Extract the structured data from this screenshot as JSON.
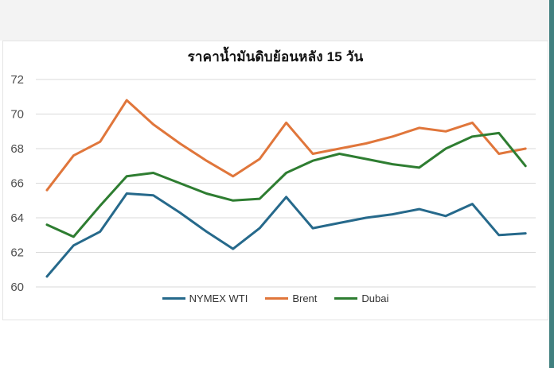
{
  "palette": {
    "top_strip": "#f3f3f3",
    "right_strip": "#41807f",
    "panel_border": "#e4e4e4",
    "gridline": "#dadada",
    "tick_label": "#4d4d4d"
  },
  "chart_data": {
    "type": "line",
    "title": "ราคาน้ำมันดิบย้อนหลัง 15 วัน",
    "xlabel": "",
    "ylabel": "",
    "x_tick_labels_visible": false,
    "grid": true,
    "legend_position": "bottom",
    "ylim": [
      60,
      72
    ],
    "y_ticks": [
      72,
      70,
      68,
      66,
      64,
      62,
      60
    ],
    "series": [
      {
        "name": "NYMEX WTI",
        "color": "#26698b",
        "values": [
          60.6,
          62.4,
          63.2,
          65.4,
          65.3,
          64.3,
          63.2,
          62.2,
          63.4,
          65.2,
          63.4,
          63.7,
          64.0,
          64.2,
          64.5,
          64.1,
          64.8,
          63.0,
          63.1
        ]
      },
      {
        "name": "Brent",
        "color": "#e0763b",
        "values": [
          65.6,
          67.6,
          68.4,
          70.8,
          69.4,
          68.3,
          67.3,
          66.4,
          67.4,
          69.5,
          67.7,
          68.0,
          68.3,
          68.7,
          69.2,
          69.0,
          69.5,
          67.7,
          68.0
        ]
      },
      {
        "name": "Dubai",
        "color": "#2e7d31",
        "values": [
          63.6,
          62.9,
          64.7,
          66.4,
          66.6,
          66.0,
          65.4,
          65.0,
          65.1,
          66.6,
          67.3,
          67.7,
          67.4,
          67.1,
          66.9,
          68.0,
          68.7,
          68.9,
          67.0
        ]
      }
    ]
  }
}
